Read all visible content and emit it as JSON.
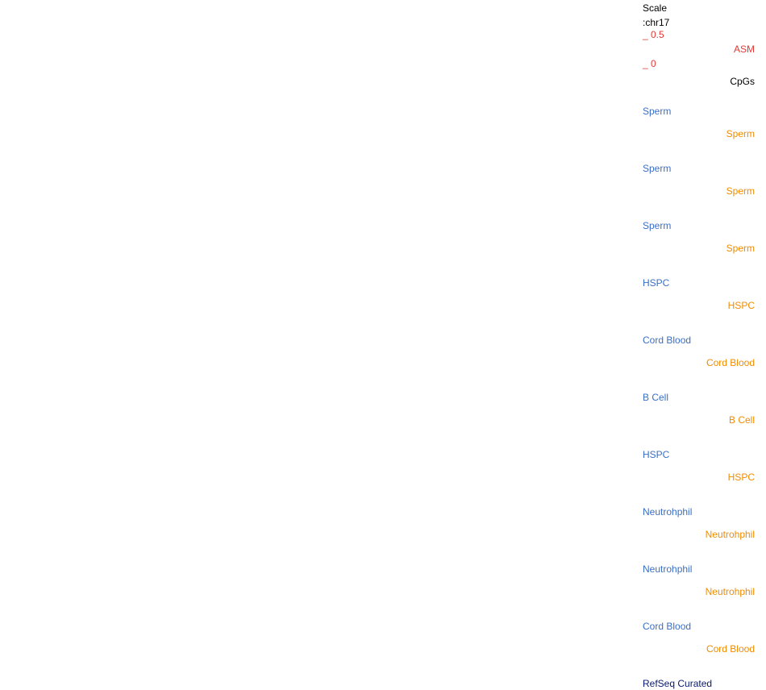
{
  "scale_label": "Scale",
  "chrom_label": ":chr17",
  "asm_track": {
    "max_tick": "_ 0.5",
    "name": "ASM",
    "min_tick": "_ 0"
  },
  "cpg_track": {
    "name": "CpGs"
  },
  "sample_tracks": [
    {
      "left": "Sperm",
      "right": "Sperm"
    },
    {
      "left": "Sperm",
      "right": "Sperm"
    },
    {
      "left": "Sperm",
      "right": "Sperm"
    },
    {
      "left": "HSPC",
      "right": "HSPC"
    },
    {
      "left": "Cord Blood",
      "right": "Cord Blood"
    },
    {
      "left": "B Cell",
      "right": "B Cell"
    },
    {
      "left": "HSPC",
      "right": "HSPC"
    },
    {
      "left": "Neutrohphil",
      "right": "Neutrohphil"
    },
    {
      "left": "Neutrohphil",
      "right": "Neutrohphil"
    },
    {
      "left": "Cord Blood",
      "right": "Cord Blood"
    }
  ],
  "refseq_label": "RefSeq Curated",
  "colors": {
    "asm": "#e53935",
    "sample_left": "#3a6fc4",
    "sample_right": "#f08c00",
    "refseq": "#0b1a6e"
  }
}
